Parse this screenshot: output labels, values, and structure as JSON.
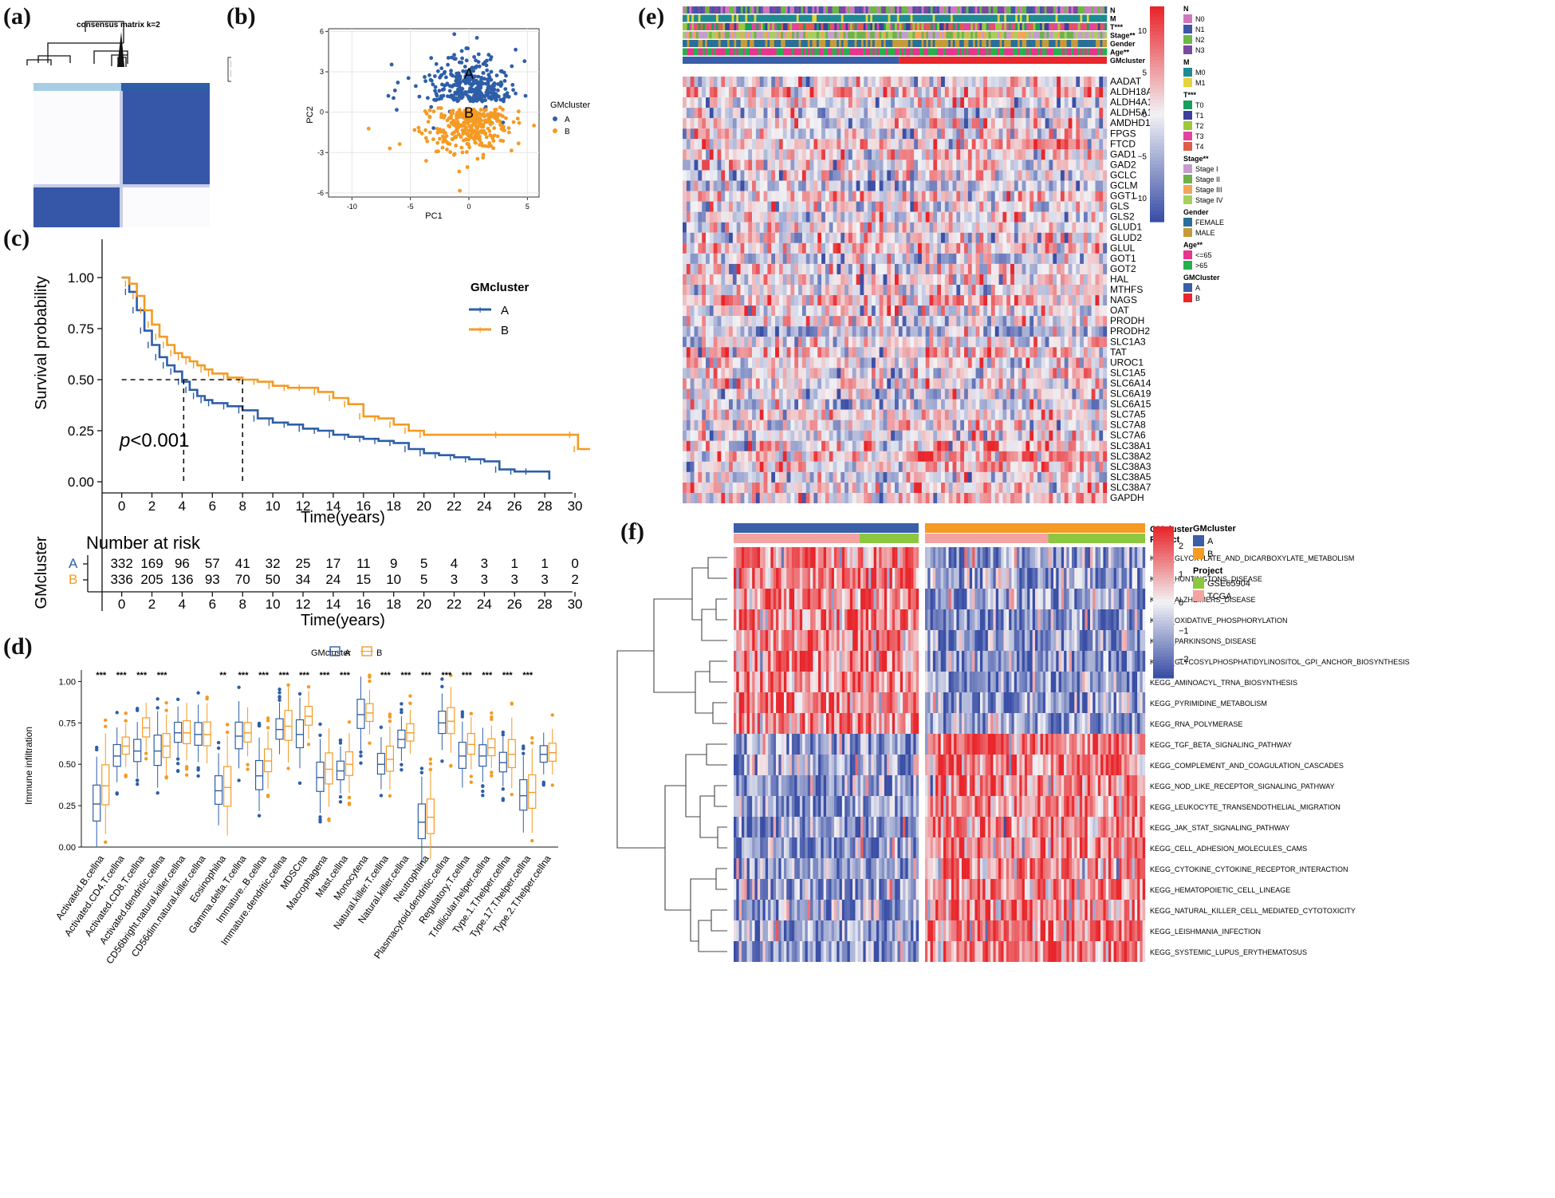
{
  "panels": {
    "a": {
      "label": "(a)",
      "title": "consensus matrix k=2",
      "legend": [
        "1",
        "2"
      ]
    },
    "b": {
      "label": "(b)"
    },
    "c": {
      "label": "(c)"
    },
    "d": {
      "label": "(d)"
    },
    "e": {
      "label": "(e)"
    },
    "f": {
      "label": "(f)"
    }
  },
  "colors": {
    "cluster_a": "#2e5ea8",
    "cluster_b": "#f59a23",
    "heat_low": "#3a4fa6",
    "heat_mid": "#f2f2f5",
    "heat_high": "#e8262b",
    "consensus_light": "#a6cde3",
    "consensus_dark": "#2e5ea8"
  },
  "chart_data": [
    {
      "panel": "b",
      "type": "scatter",
      "xlabel": "PC1",
      "ylabel": "PC2",
      "xticks": [
        -10,
        -5,
        0,
        5
      ],
      "yticks": [
        -6,
        -3,
        0,
        3,
        6
      ],
      "xlim": [
        -12,
        6
      ],
      "ylim": [
        -6.3,
        6.2
      ],
      "legend_title": "GMcluster",
      "series": [
        {
          "name": "A",
          "color": "#2e5ea8",
          "label_pos": [
            0,
            2.5
          ]
        },
        {
          "name": "B",
          "color": "#f59a23",
          "label_pos": [
            0,
            -0.4
          ]
        }
      ]
    },
    {
      "panel": "c",
      "type": "line",
      "subtype": "kaplan-meier",
      "xlabel": "Time(years)",
      "ylabel": "Survival probability",
      "xticks": [
        0,
        2,
        4,
        6,
        8,
        10,
        12,
        14,
        16,
        18,
        20,
        22,
        24,
        26,
        28,
        30
      ],
      "yticks": [
        "0.00",
        "0.25",
        "0.50",
        "0.75",
        "1.00"
      ],
      "xlim": [
        -1.3,
        31
      ],
      "ylim": [
        0,
        1
      ],
      "pvalue_p": "p",
      "pvalue_rest": "<0.001",
      "median_survival": {
        "A": 4.1,
        "B": 8.0,
        "level": 0.5
      },
      "legend_title": "GMcluster",
      "series": [
        {
          "name": "A",
          "color": "#2e5ea8",
          "x": [
            0,
            0.5,
            1,
            1.5,
            2,
            2.5,
            3,
            3.5,
            4,
            4.5,
            5,
            5.5,
            6,
            7,
            8,
            9,
            10,
            11,
            12,
            13,
            14,
            15,
            16,
            17,
            18,
            19,
            20,
            21,
            22,
            23,
            24,
            25,
            26,
            27,
            28.3
          ],
          "y": [
            1.0,
            0.93,
            0.84,
            0.74,
            0.67,
            0.61,
            0.57,
            0.54,
            0.49,
            0.45,
            0.42,
            0.4,
            0.385,
            0.37,
            0.35,
            0.31,
            0.29,
            0.28,
            0.26,
            0.25,
            0.23,
            0.22,
            0.21,
            0.2,
            0.19,
            0.16,
            0.14,
            0.13,
            0.12,
            0.11,
            0.1,
            0.06,
            0.05,
            0.05,
            0.01
          ]
        },
        {
          "name": "B",
          "color": "#f59a23",
          "x": [
            0,
            0.5,
            1,
            1.5,
            2,
            2.5,
            3,
            3.5,
            4,
            4.5,
            5,
            5.5,
            6,
            7,
            8,
            9,
            10,
            11,
            12,
            13,
            14,
            15,
            16,
            17,
            18,
            19,
            20,
            25,
            29.9,
            30.2,
            31
          ],
          "y": [
            1.0,
            0.97,
            0.91,
            0.84,
            0.77,
            0.71,
            0.67,
            0.63,
            0.61,
            0.59,
            0.57,
            0.55,
            0.53,
            0.51,
            0.5,
            0.49,
            0.47,
            0.46,
            0.46,
            0.44,
            0.41,
            0.38,
            0.32,
            0.31,
            0.28,
            0.25,
            0.23,
            0.23,
            0.23,
            0.16,
            0.16
          ]
        }
      ]
    },
    {
      "panel": "c-risk",
      "type": "table",
      "title": "Number at risk",
      "ylabel": "GMcluster",
      "xlabel": "Time(years)",
      "times": [
        0,
        2,
        4,
        6,
        8,
        10,
        12,
        14,
        16,
        18,
        20,
        22,
        24,
        26,
        28,
        30
      ],
      "rows": [
        {
          "name": "A",
          "color": "#2e5ea8",
          "values": [
            332,
            169,
            96,
            57,
            41,
            32,
            25,
            17,
            11,
            9,
            5,
            4,
            3,
            1,
            1,
            0
          ]
        },
        {
          "name": "B",
          "color": "#f59a23",
          "values": [
            336,
            205,
            136,
            93,
            70,
            50,
            34,
            24,
            15,
            10,
            5,
            3,
            3,
            3,
            3,
            2
          ]
        }
      ]
    },
    {
      "panel": "d",
      "type": "box",
      "ylabel": "Immune infiltration",
      "yticks": [
        "0.00",
        "0.25",
        "0.50",
        "0.75",
        "1.00"
      ],
      "ylim": [
        0,
        1.06
      ],
      "legend_title": "GMcluster",
      "legend": [
        "A",
        "B"
      ],
      "categories": [
        "Activated.B.cellna",
        "Activated.CD4.T.cellna",
        "Activated.CD8.T.cellna",
        "Activated.dendritic.cellna",
        "CD56bright.natural.killer.cellna",
        "CD56dim.natural.killer.cellna",
        "Eosinophilna",
        "Gamma.delta.T.cellna",
        "Immature..B.cellna",
        "Immature.dendritic.cellna",
        "MDSCna",
        "Macrophagena",
        "Mast.cellna",
        "Monocytena",
        "Natural.killer.T.cellna",
        "Natural.killer.cellna",
        "Neutrophilna",
        "Plasmacytoid.dendritic.cellna",
        "Regulatory.T.cellna",
        "T.follicular.helper.cellna",
        "Type.1.T.helper.cellna",
        "Type.17.T.helper.cellna",
        "Type.2.T.helper.cellna"
      ],
      "significance": [
        "***",
        "***",
        "***",
        "***",
        "",
        "",
        "**",
        "***",
        "***",
        "***",
        "***",
        "***",
        "***",
        "",
        "***",
        "***",
        "***",
        "***",
        "***",
        "***",
        "***",
        "***",
        ""
      ],
      "median_A": [
        0.26,
        0.55,
        0.58,
        0.58,
        0.69,
        0.68,
        0.34,
        0.67,
        0.43,
        0.71,
        0.68,
        0.42,
        0.46,
        0.8,
        0.5,
        0.65,
        0.15,
        0.75,
        0.55,
        0.55,
        0.51,
        0.31,
        0.56
      ],
      "median_B": [
        0.37,
        0.61,
        0.72,
        0.61,
        0.69,
        0.68,
        0.36,
        0.69,
        0.52,
        0.73,
        0.79,
        0.47,
        0.5,
        0.81,
        0.53,
        0.69,
        0.18,
        0.76,
        0.62,
        0.6,
        0.56,
        0.33,
        0.57
      ]
    },
    {
      "panel": "e",
      "type": "heatmap",
      "rows": [
        "AADAT",
        "ALDH18A1",
        "ALDH4A1",
        "ALDH5A1",
        "AMDHD1",
        "FPGS",
        "FTCD",
        "GAD1",
        "GAD2",
        "GCLC",
        "GCLM",
        "GGT1",
        "GLS",
        "GLS2",
        "GLUD1",
        "GLUD2",
        "GLUL",
        "GOT1",
        "GOT2",
        "HAL",
        "MTHFS",
        "NAGS",
        "OAT",
        "PRODH",
        "PRODH2",
        "SLC1A3",
        "TAT",
        "UROC1",
        "SLC1A5",
        "SLC6A14",
        "SLC6A19",
        "SLC6A15",
        "SLC7A5",
        "SLC7A8",
        "SLC7A6",
        "SLC38A1",
        "SLC38A2",
        "SLC38A3",
        "SLC38A5",
        "SLC38A7",
        "GAPDH"
      ],
      "annotation_tracks": [
        "N",
        "M",
        "T***",
        "Stage**",
        "Gender",
        "Age**",
        "GMcluster"
      ],
      "color_scale": {
        "ticks": [
          "10",
          "5",
          "0",
          "−5",
          "−10"
        ]
      },
      "legend_groups": [
        {
          "title": "N",
          "items": [
            {
              "label": "N0",
              "color": "#d078bf"
            },
            {
              "label": "N1",
              "color": "#3d57a4"
            },
            {
              "label": "N2",
              "color": "#6bb845"
            },
            {
              "label": "N3",
              "color": "#7a49a0"
            }
          ]
        },
        {
          "title": "M",
          "items": [
            {
              "label": "M0",
              "color": "#1f8a92"
            },
            {
              "label": "M1",
              "color": "#e2d43a"
            }
          ]
        },
        {
          "title": "T***",
          "items": [
            {
              "label": "T0",
              "color": "#1a9e5c"
            },
            {
              "label": "T1",
              "color": "#3d3f9c"
            },
            {
              "label": "T2",
              "color": "#9fc63c"
            },
            {
              "label": "T3",
              "color": "#e2459b"
            },
            {
              "label": "T4",
              "color": "#e05c4b"
            }
          ]
        },
        {
          "title": "Stage**",
          "items": [
            {
              "label": "Stage I",
              "color": "#c69cce"
            },
            {
              "label": "Stage II",
              "color": "#6fb24a"
            },
            {
              "label": "Stage III",
              "color": "#f4a457"
            },
            {
              "label": "Stage IV",
              "color": "#a8cf5c"
            }
          ]
        },
        {
          "title": "Gender",
          "items": [
            {
              "label": "FEMALE",
              "color": "#2a6f98"
            },
            {
              "label": "MALE",
              "color": "#c69a3a"
            }
          ]
        },
        {
          "title": "Age**",
          "items": [
            {
              "label": "<=65",
              "color": "#e8348d"
            },
            {
              "label": ">65",
              "color": "#24b14b"
            }
          ]
        },
        {
          "title": "GMCluster",
          "items": [
            {
              "label": "A",
              "color": "#3a5fa8"
            },
            {
              "label": "B",
              "color": "#e8262b"
            }
          ]
        }
      ]
    },
    {
      "panel": "f",
      "type": "heatmap",
      "annotation_tracks": [
        "GMcluster",
        "Project"
      ],
      "rows": [
        "KEGG_GLYOXYLATE_AND_DICARBOXYLATE_METABOLISM",
        "KEGG_HUNTINGTONS_DISEASE",
        "KEGG_ALZHEIMERS_DISEASE",
        "KEGG_OXIDATIVE_PHOSPHORYLATION",
        "KEGG_PARKINSONS_DISEASE",
        "KEGG_GLYCOSYLPHOSPHATIDYLINOSITOL_GPI_ANCHOR_BIOSYNTHESIS",
        "KEGG_AMINOACYL_TRNA_BIOSYNTHESIS",
        "KEGG_PYRIMIDINE_METABOLISM",
        "KEGG_RNA_POLYMERASE",
        "KEGG_TGF_BETA_SIGNALING_PATHWAY",
        "KEGG_COMPLEMENT_AND_COAGULATION_CASCADES",
        "KEGG_NOD_LIKE_RECEPTOR_SIGNALING_PATHWAY",
        "KEGG_LEUKOCYTE_TRANSENDOTHELIAL_MIGRATION",
        "KEGG_JAK_STAT_SIGNALING_PATHWAY",
        "KEGG_CELL_ADHESION_MOLECULES_CAMS",
        "KEGG_CYTOKINE_CYTOKINE_RECEPTOR_INTERACTION",
        "KEGG_HEMATOPOIETIC_CELL_LINEAGE",
        "KEGG_NATURAL_KILLER_CELL_MEDIATED_CYTOTOXICITY",
        "KEGG_LEISHMANIA_INFECTION",
        "KEGG_SYSTEMIC_LUPUS_ERYTHEMATOSUS"
      ],
      "color_scale": {
        "ticks": [
          "2",
          "1",
          "0",
          "−1",
          "−2"
        ]
      },
      "legend_groups": [
        {
          "title": "GMcluster",
          "items": [
            {
              "label": "A",
              "color": "#3a5fa8"
            },
            {
              "label": "B",
              "color": "#f59a23"
            }
          ]
        },
        {
          "title": "Project",
          "items": [
            {
              "label": "GSE65904",
              "color": "#8dc63f"
            },
            {
              "label": "TCGA",
              "color": "#f4a3a3"
            }
          ]
        }
      ]
    }
  ]
}
